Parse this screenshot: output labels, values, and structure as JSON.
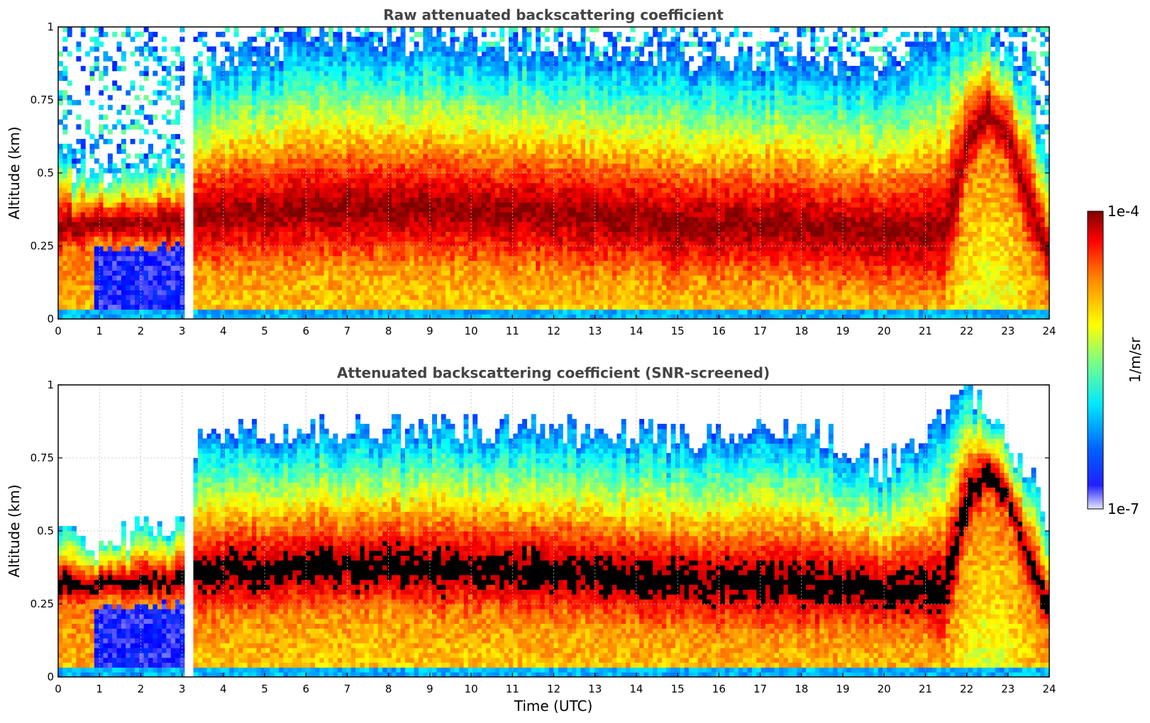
{
  "chart_data": [
    {
      "type": "heatmap",
      "title": "Raw attenuated backscattering coefficient",
      "xlabel": "",
      "ylabel": "Altitude (km)",
      "xlim": [
        0,
        24
      ],
      "ylim": [
        0,
        1
      ],
      "x_ticks": [
        "0",
        "1",
        "2",
        "3",
        "4",
        "5",
        "6",
        "7",
        "8",
        "9",
        "10",
        "11",
        "12",
        "13",
        "14",
        "15",
        "16",
        "17",
        "18",
        "19",
        "20",
        "21",
        "22",
        "23",
        "24"
      ],
      "y_ticks": [
        "0",
        "0.25",
        "0.5",
        "0.75",
        "1"
      ],
      "grid": true,
      "screened": false,
      "layer_profile": {
        "time_utc": [
          0,
          1,
          3.2,
          3.3,
          6,
          9,
          12,
          15,
          18,
          20,
          21.5,
          22,
          22.5,
          23,
          23.5,
          24
        ],
        "layer_center_km": [
          0.32,
          0.32,
          0.33,
          0.35,
          0.38,
          0.38,
          0.36,
          0.33,
          0.32,
          0.3,
          0.3,
          0.6,
          0.7,
          0.62,
          0.4,
          0.22
        ],
        "layer_top_km": [
          0.55,
          0.5,
          0.55,
          0.85,
          0.95,
          0.95,
          0.95,
          0.9,
          0.9,
          0.85,
          1.0,
          1.0,
          1.0,
          0.9,
          0.85,
          0.5
        ]
      }
    },
    {
      "type": "heatmap",
      "title": "Attenuated backscattering coefficient (SNR-screened)",
      "xlabel": "Time (UTC)",
      "ylabel": "Altitude (km)",
      "xlim": [
        0,
        24
      ],
      "ylim": [
        0,
        1
      ],
      "x_ticks": [
        "0",
        "1",
        "2",
        "3",
        "4",
        "5",
        "6",
        "7",
        "8",
        "9",
        "10",
        "11",
        "12",
        "13",
        "14",
        "15",
        "16",
        "17",
        "18",
        "19",
        "20",
        "21",
        "22",
        "23",
        "24"
      ],
      "y_ticks": [
        "0",
        "0.25",
        "0.5",
        "0.75",
        "1"
      ],
      "grid": true,
      "screened": true,
      "layer_profile": {
        "time_utc": [
          0,
          1,
          3.2,
          3.3,
          6,
          9,
          12,
          15,
          18,
          20,
          21.5,
          22,
          22.5,
          23,
          23.5,
          24
        ],
        "layer_center_km": [
          0.32,
          0.32,
          0.33,
          0.35,
          0.38,
          0.38,
          0.36,
          0.33,
          0.32,
          0.3,
          0.3,
          0.6,
          0.7,
          0.62,
          0.4,
          0.22
        ],
        "layer_top_km": [
          0.5,
          0.45,
          0.55,
          0.8,
          0.85,
          0.85,
          0.85,
          0.82,
          0.85,
          0.72,
          0.9,
          1.0,
          0.9,
          0.8,
          0.7,
          0.5
        ]
      }
    }
  ],
  "colorbar": {
    "label": "1/m/sr",
    "max_label": "1e-4",
    "min_label": "1e-7",
    "colors": [
      "#e6e6ff",
      "#0000ff",
      "#0080ff",
      "#00ffff",
      "#80ff80",
      "#ffff00",
      "#ff8000",
      "#ff0000",
      "#800000"
    ]
  }
}
